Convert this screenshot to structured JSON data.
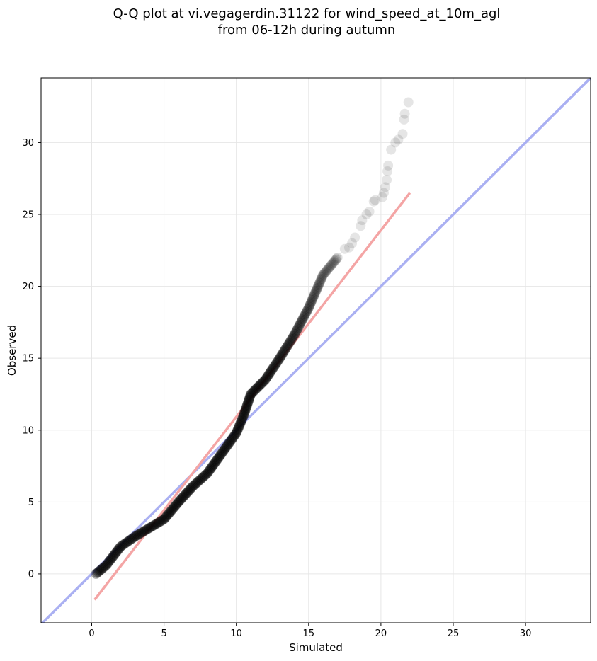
{
  "chart_data": {
    "type": "scatter",
    "title_line1": "Q-Q plot at vi.vegagerdin.31122 for wind_speed_at_10m_agl",
    "title_line2": "from 06-12h during autumn",
    "xlabel": "Simulated",
    "ylabel": "Observed",
    "xlim": [
      -3.5,
      34.5
    ],
    "ylim": [
      -3.4,
      34.5
    ],
    "xticks": [
      0,
      5,
      10,
      15,
      20,
      25,
      30
    ],
    "yticks": [
      0,
      5,
      10,
      15,
      20,
      25,
      30
    ],
    "grid": true,
    "colors": {
      "points": "#000000",
      "identity_line": "#aab0f2",
      "fit_line": "#f4a5a5",
      "grid": "#e6e6e6"
    },
    "reference_lines": [
      {
        "kind": "identity",
        "x": [
          -3.5,
          34.5
        ],
        "y": [
          -3.5,
          34.5
        ]
      },
      {
        "kind": "fit",
        "x": [
          0.2,
          22.0
        ],
        "y": [
          -1.8,
          26.5
        ]
      }
    ],
    "curve_knots": [
      [
        0.3,
        0.0
      ],
      [
        1.0,
        0.6
      ],
      [
        2.0,
        1.9
      ],
      [
        3.0,
        2.6
      ],
      [
        4.0,
        3.2
      ],
      [
        5.0,
        3.8
      ],
      [
        6.0,
        5.0
      ],
      [
        7.0,
        6.1
      ],
      [
        8.0,
        7.0
      ],
      [
        9.0,
        8.4
      ],
      [
        10.0,
        9.8
      ],
      [
        10.5,
        11.0
      ],
      [
        11.0,
        12.5
      ],
      [
        12.0,
        13.5
      ],
      [
        13.0,
        15.0
      ],
      [
        14.0,
        16.6
      ],
      [
        15.0,
        18.5
      ],
      [
        16.0,
        20.8
      ],
      [
        17.0,
        22.0
      ]
    ],
    "tail_points": [
      [
        17.5,
        22.6
      ],
      [
        17.8,
        22.7
      ],
      [
        18.0,
        23.0
      ],
      [
        18.2,
        23.4
      ],
      [
        18.6,
        24.2
      ],
      [
        18.7,
        24.6
      ],
      [
        19.0,
        25.0
      ],
      [
        19.2,
        25.2
      ],
      [
        19.5,
        25.9
      ],
      [
        19.6,
        26.0
      ],
      [
        20.1,
        26.2
      ],
      [
        20.2,
        26.5
      ],
      [
        20.3,
        26.9
      ],
      [
        20.4,
        27.4
      ],
      [
        20.45,
        28.0
      ],
      [
        20.5,
        28.4
      ],
      [
        20.7,
        29.5
      ],
      [
        21.0,
        30.0
      ],
      [
        21.2,
        30.2
      ],
      [
        21.5,
        30.6
      ],
      [
        21.6,
        31.6
      ],
      [
        21.65,
        32.0
      ],
      [
        21.9,
        32.8
      ]
    ]
  }
}
